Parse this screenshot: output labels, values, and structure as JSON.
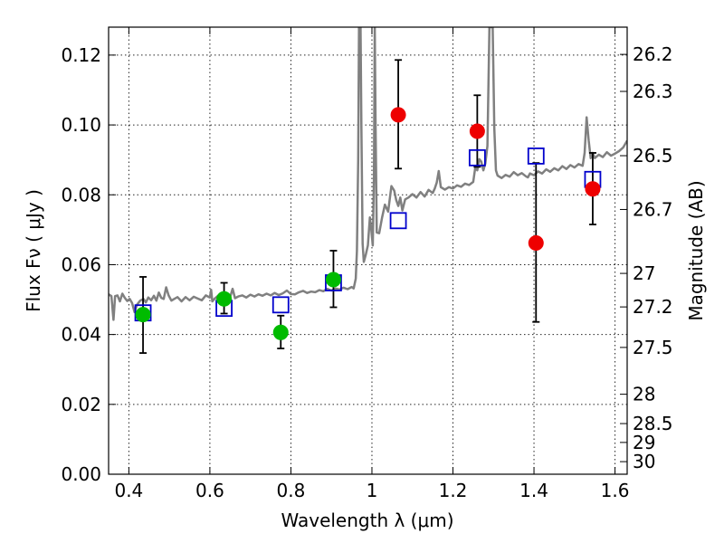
{
  "chart_data": {
    "type": "scatter",
    "xlabel": "Wavelength  λ (μm)",
    "ylabel": "Flux  Fν  ( μJy )",
    "y2label": "Magnitude (AB)",
    "xlim": [
      0.35,
      1.63
    ],
    "ylim": [
      0.0,
      0.128
    ],
    "grid": true,
    "x_ticks": [
      0.4,
      0.6,
      0.8,
      1.0,
      1.2,
      1.4,
      1.6
    ],
    "x_tick_labels": [
      "0.4",
      "0.6",
      "0.8",
      "1",
      "1.2",
      "1.4",
      "1.6"
    ],
    "y_ticks": [
      0.0,
      0.02,
      0.04,
      0.06,
      0.08,
      0.1,
      0.12
    ],
    "y_tick_labels": [
      "0.00",
      "0.02",
      "0.04",
      "0.06",
      "0.08",
      "0.10",
      "0.12"
    ],
    "y2_ticks": [
      {
        "label": "26.2",
        "flux": 0.1202
      },
      {
        "label": "26.3",
        "flux": 0.1096
      },
      {
        "label": "26.5",
        "flux": 0.0912
      },
      {
        "label": "26.7",
        "flux": 0.0758
      },
      {
        "label": "27",
        "flux": 0.0575
      },
      {
        "label": "27.2",
        "flux": 0.0479
      },
      {
        "label": "27.5",
        "flux": 0.0363
      },
      {
        "label": "28",
        "flux": 0.0229
      },
      {
        "label": "28.5",
        "flux": 0.0145
      },
      {
        "label": "29",
        "flux": 0.0091
      },
      {
        "label": "30",
        "flux": 0.0036
      }
    ],
    "series": [
      {
        "marker": "circle",
        "color": "#00bb00",
        "points": [
          {
            "x": 0.435,
            "y": 0.0457,
            "yerr_lo": 0.0347,
            "yerr_hi": 0.0565
          },
          {
            "x": 0.635,
            "y": 0.0502,
            "yerr_lo": 0.046,
            "yerr_hi": 0.0548
          },
          {
            "x": 0.775,
            "y": 0.0406,
            "yerr_lo": 0.036,
            "yerr_hi": 0.0454
          },
          {
            "x": 0.905,
            "y": 0.0557,
            "yerr_lo": 0.0478,
            "yerr_hi": 0.064
          }
        ]
      },
      {
        "marker": "circle",
        "color": "#ee0000",
        "points": [
          {
            "x": 1.065,
            "y": 0.1029,
            "yerr_lo": 0.0875,
            "yerr_hi": 0.1186
          },
          {
            "x": 1.26,
            "y": 0.0982,
            "yerr_lo": 0.088,
            "yerr_hi": 0.1085
          },
          {
            "x": 1.405,
            "y": 0.0662,
            "yerr_lo": 0.0436,
            "yerr_hi": 0.0891
          },
          {
            "x": 1.545,
            "y": 0.0817,
            "yerr_lo": 0.0715,
            "yerr_hi": 0.092
          }
        ]
      },
      {
        "marker": "open-square",
        "color": "#0000cc",
        "points": [
          {
            "x": 0.435,
            "y": 0.0462
          },
          {
            "x": 0.635,
            "y": 0.0475
          },
          {
            "x": 0.775,
            "y": 0.0485
          },
          {
            "x": 0.905,
            "y": 0.0548
          },
          {
            "x": 1.065,
            "y": 0.0726
          },
          {
            "x": 1.26,
            "y": 0.0906
          },
          {
            "x": 1.405,
            "y": 0.0911
          },
          {
            "x": 1.545,
            "y": 0.0844
          }
        ]
      },
      {
        "marker": "line",
        "color": "#808080",
        "points": [
          [
            0.35,
            0.0515
          ],
          [
            0.357,
            0.051
          ],
          [
            0.362,
            0.0442
          ],
          [
            0.366,
            0.051
          ],
          [
            0.372,
            0.0512
          ],
          [
            0.378,
            0.0495
          ],
          [
            0.384,
            0.0517
          ],
          [
            0.39,
            0.0505
          ],
          [
            0.396,
            0.0496
          ],
          [
            0.402,
            0.0502
          ],
          [
            0.408,
            0.049
          ],
          [
            0.414,
            0.0464
          ],
          [
            0.42,
            0.0485
          ],
          [
            0.428,
            0.0497
          ],
          [
            0.436,
            0.0502
          ],
          [
            0.442,
            0.0492
          ],
          [
            0.448,
            0.0506
          ],
          [
            0.455,
            0.0498
          ],
          [
            0.462,
            0.0511
          ],
          [
            0.468,
            0.0497
          ],
          [
            0.474,
            0.052
          ],
          [
            0.48,
            0.0505
          ],
          [
            0.486,
            0.0502
          ],
          [
            0.492,
            0.0535
          ],
          [
            0.498,
            0.0512
          ],
          [
            0.505,
            0.0497
          ],
          [
            0.512,
            0.0502
          ],
          [
            0.52,
            0.0507
          ],
          [
            0.53,
            0.0495
          ],
          [
            0.54,
            0.0507
          ],
          [
            0.55,
            0.0498
          ],
          [
            0.56,
            0.0508
          ],
          [
            0.57,
            0.0503
          ],
          [
            0.58,
            0.0498
          ],
          [
            0.59,
            0.0512
          ],
          [
            0.6,
            0.0506
          ],
          [
            0.603,
            0.0528
          ],
          [
            0.606,
            0.0495
          ],
          [
            0.612,
            0.0503
          ],
          [
            0.62,
            0.0511
          ],
          [
            0.63,
            0.0506
          ],
          [
            0.64,
            0.0515
          ],
          [
            0.65,
            0.0507
          ],
          [
            0.656,
            0.0531
          ],
          [
            0.662,
            0.0504
          ],
          [
            0.67,
            0.0509
          ],
          [
            0.68,
            0.0512
          ],
          [
            0.69,
            0.0506
          ],
          [
            0.7,
            0.0514
          ],
          [
            0.71,
            0.0509
          ],
          [
            0.72,
            0.0515
          ],
          [
            0.73,
            0.0511
          ],
          [
            0.74,
            0.0517
          ],
          [
            0.75,
            0.0512
          ],
          [
            0.76,
            0.0519
          ],
          [
            0.77,
            0.0513
          ],
          [
            0.78,
            0.0518
          ],
          [
            0.79,
            0.0526
          ],
          [
            0.8,
            0.0516
          ],
          [
            0.81,
            0.0515
          ],
          [
            0.82,
            0.0521
          ],
          [
            0.83,
            0.0525
          ],
          [
            0.84,
            0.0519
          ],
          [
            0.85,
            0.0523
          ],
          [
            0.86,
            0.0521
          ],
          [
            0.87,
            0.0527
          ],
          [
            0.88,
            0.0524
          ],
          [
            0.89,
            0.0531
          ],
          [
            0.9,
            0.0526
          ],
          [
            0.91,
            0.0532
          ],
          [
            0.92,
            0.0529
          ],
          [
            0.93,
            0.0534
          ],
          [
            0.94,
            0.053
          ],
          [
            0.95,
            0.0536
          ],
          [
            0.955,
            0.0532
          ],
          [
            0.96,
            0.056
          ],
          [
            0.963,
            0.064
          ],
          [
            0.966,
            0.09
          ],
          [
            0.968,
            0.128
          ],
          [
            0.972,
            0.128
          ],
          [
            0.974,
            0.1
          ],
          [
            0.977,
            0.066
          ],
          [
            0.98,
            0.0608
          ],
          [
            0.985,
            0.063
          ],
          [
            0.99,
            0.0655
          ],
          [
            0.995,
            0.0735
          ],
          [
            0.998,
            0.0705
          ],
          [
            1.002,
            0.0655
          ],
          [
            1.005,
            0.085
          ],
          [
            1.007,
            0.128
          ],
          [
            1.009,
            0.1
          ],
          [
            1.012,
            0.0692
          ],
          [
            1.018,
            0.069
          ],
          [
            1.025,
            0.0735
          ],
          [
            1.032,
            0.0772
          ],
          [
            1.04,
            0.0752
          ],
          [
            1.048,
            0.0825
          ],
          [
            1.055,
            0.0812
          ],
          [
            1.06,
            0.0785
          ],
          [
            1.065,
            0.0768
          ],
          [
            1.07,
            0.0792
          ],
          [
            1.075,
            0.0755
          ],
          [
            1.082,
            0.0787
          ],
          [
            1.09,
            0.0792
          ],
          [
            1.1,
            0.0802
          ],
          [
            1.11,
            0.0792
          ],
          [
            1.12,
            0.0808
          ],
          [
            1.13,
            0.0795
          ],
          [
            1.14,
            0.0814
          ],
          [
            1.15,
            0.0805
          ],
          [
            1.155,
            0.0818
          ],
          [
            1.16,
            0.0835
          ],
          [
            1.165,
            0.0868
          ],
          [
            1.17,
            0.0822
          ],
          [
            1.18,
            0.0815
          ],
          [
            1.19,
            0.0822
          ],
          [
            1.2,
            0.0818
          ],
          [
            1.21,
            0.0827
          ],
          [
            1.22,
            0.0823
          ],
          [
            1.23,
            0.0832
          ],
          [
            1.24,
            0.0828
          ],
          [
            1.25,
            0.0837
          ],
          [
            1.255,
            0.0877
          ],
          [
            1.26,
            0.087
          ],
          [
            1.265,
            0.0902
          ],
          [
            1.27,
            0.0895
          ],
          [
            1.275,
            0.087
          ],
          [
            1.28,
            0.089
          ],
          [
            1.285,
            0.094
          ],
          [
            1.29,
            0.128
          ],
          [
            1.298,
            0.128
          ],
          [
            1.302,
            0.099
          ],
          [
            1.306,
            0.087
          ],
          [
            1.31,
            0.0855
          ],
          [
            1.32,
            0.0848
          ],
          [
            1.33,
            0.0857
          ],
          [
            1.34,
            0.0852
          ],
          [
            1.35,
            0.0865
          ],
          [
            1.36,
            0.0856
          ],
          [
            1.37,
            0.0862
          ],
          [
            1.38,
            0.0853
          ],
          [
            1.385,
            0.085
          ],
          [
            1.39,
            0.0861
          ],
          [
            1.4,
            0.0856
          ],
          [
            1.41,
            0.0867
          ],
          [
            1.42,
            0.0861
          ],
          [
            1.43,
            0.0873
          ],
          [
            1.44,
            0.0866
          ],
          [
            1.45,
            0.0876
          ],
          [
            1.46,
            0.087
          ],
          [
            1.47,
            0.0882
          ],
          [
            1.48,
            0.0874
          ],
          [
            1.49,
            0.0885
          ],
          [
            1.5,
            0.0878
          ],
          [
            1.51,
            0.0888
          ],
          [
            1.52,
            0.0883
          ],
          [
            1.525,
            0.092
          ],
          [
            1.53,
            0.1022
          ],
          [
            1.535,
            0.0955
          ],
          [
            1.54,
            0.0905
          ],
          [
            1.545,
            0.092
          ],
          [
            1.55,
            0.0905
          ],
          [
            1.56,
            0.0915
          ],
          [
            1.57,
            0.0908
          ],
          [
            1.58,
            0.0922
          ],
          [
            1.59,
            0.0912
          ],
          [
            1.6,
            0.0918
          ],
          [
            1.61,
            0.0925
          ],
          [
            1.62,
            0.0935
          ],
          [
            1.63,
            0.0955
          ]
        ]
      }
    ]
  }
}
